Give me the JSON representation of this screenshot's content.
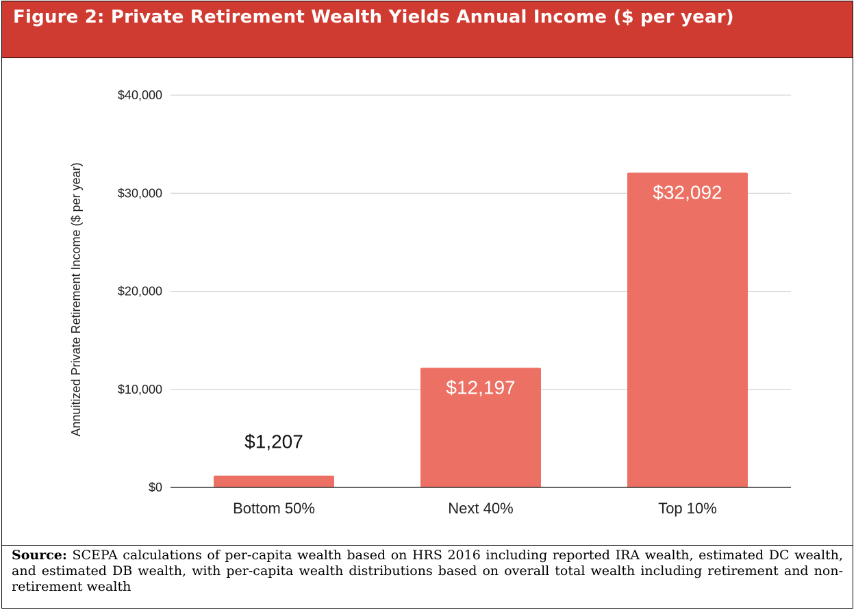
{
  "header": {
    "title": "Figure 2: Private Retirement Wealth Yields Annual Income ($ per year)"
  },
  "colors": {
    "header_bg": "#cf3b31",
    "bar": "#ec7063",
    "grid": "#cccccc",
    "axis": "#333333"
  },
  "chart_data": {
    "type": "bar",
    "categories": [
      "Bottom 50%",
      "Next 40%",
      "Top 10%"
    ],
    "values": [
      1207,
      12197,
      32092
    ],
    "value_labels": [
      "$1,207",
      "$12,197",
      "$32,092"
    ],
    "ylabel": "Annuitized Private Retirement Income ($ per year)",
    "xlabel": "",
    "ylim": [
      0,
      40000
    ],
    "yticks": [
      0,
      10000,
      20000,
      30000,
      40000
    ],
    "ytick_labels": [
      "$0",
      "$10,000",
      "$20,000",
      "$30,000",
      "$40,000"
    ],
    "grid": true,
    "legend": "none"
  },
  "footer": {
    "source_label": "Source:",
    "source_text": "SCEPA calculations of per-capita wealth based on HRS 2016 including reported IRA wealth, estimated DC wealth, and estimated DB wealth, with per-capita wealth distributions based on overall total wealth including retirement and non-retirement wealth"
  }
}
